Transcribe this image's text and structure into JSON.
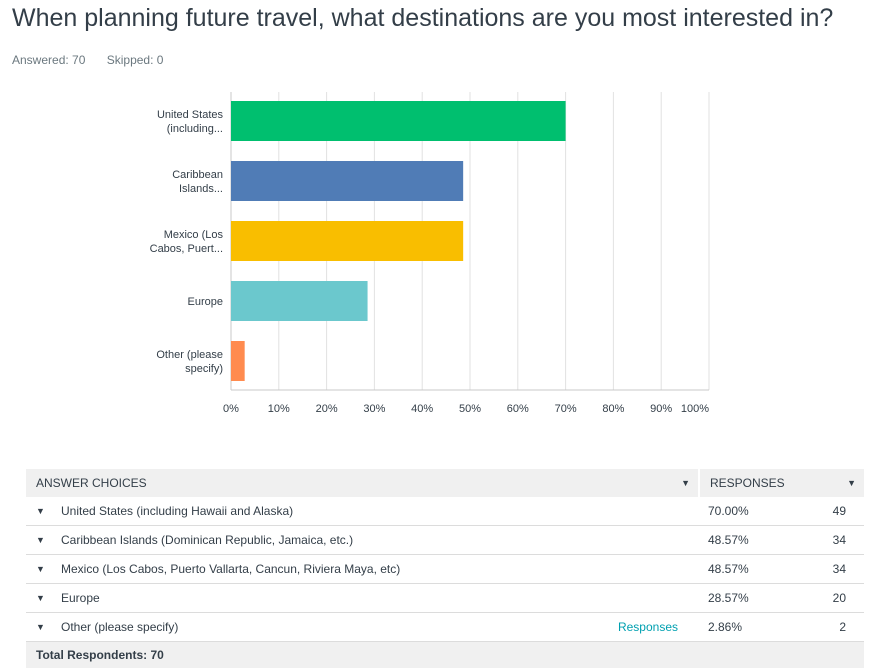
{
  "question": {
    "title": "When planning future travel, what destinations are you most interested in?",
    "answered_label": "Answered: 70",
    "skipped_label": "Skipped: 0"
  },
  "chart_data": {
    "type": "bar",
    "orientation": "horizontal",
    "categories": [
      [
        "United States",
        "(including..."
      ],
      [
        "Caribbean",
        "Islands..."
      ],
      [
        "Mexico (Los",
        "Cabos, Puert..."
      ],
      [
        "Europe"
      ],
      [
        "Other (please",
        "specify)"
      ]
    ],
    "values": [
      70.0,
      48.57,
      48.57,
      28.57,
      2.86
    ],
    "colors": [
      "#00bf6f",
      "#507cb6",
      "#f9be00",
      "#6bc8cd",
      "#ff8b4f"
    ],
    "xlim": [
      0,
      100
    ],
    "xticks": [
      "0%",
      "10%",
      "20%",
      "30%",
      "40%",
      "50%",
      "60%",
      "70%",
      "80%",
      "90%",
      "100%"
    ],
    "grid": true
  },
  "table": {
    "headers": {
      "answer": "ANSWER CHOICES",
      "responses": "RESPONSES"
    },
    "rows": [
      {
        "label": "United States (including Hawaii and Alaska)",
        "pct": "70.00%",
        "count": "49",
        "link": ""
      },
      {
        "label": "Caribbean Islands (Dominican Republic, Jamaica, etc.)",
        "pct": "48.57%",
        "count": "34",
        "link": ""
      },
      {
        "label": "Mexico (Los Cabos, Puerto Vallarta, Cancun, Riviera Maya, etc)",
        "pct": "48.57%",
        "count": "34",
        "link": ""
      },
      {
        "label": "Europe",
        "pct": "28.57%",
        "count": "20",
        "link": ""
      },
      {
        "label": "Other (please specify)",
        "pct": "2.86%",
        "count": "2",
        "link": "Responses"
      }
    ],
    "total_label": "Total Respondents: 70"
  }
}
